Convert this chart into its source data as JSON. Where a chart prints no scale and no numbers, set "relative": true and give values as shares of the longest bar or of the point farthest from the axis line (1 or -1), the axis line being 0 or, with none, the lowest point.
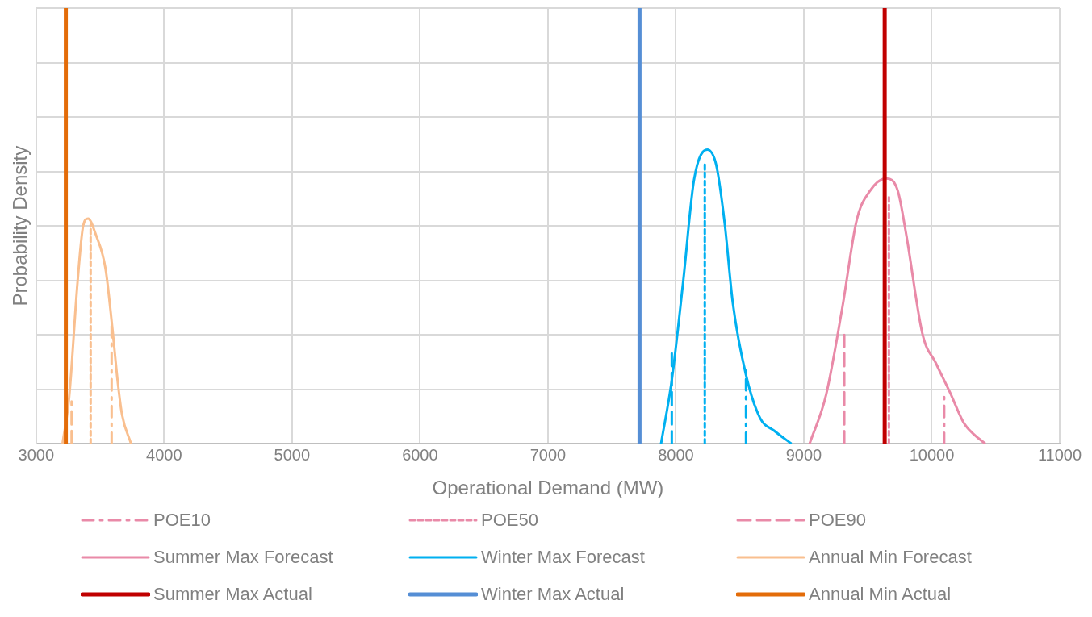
{
  "chart_data": {
    "type": "line",
    "xlabel": "Operational Demand (MW)",
    "ylabel": "Probability Density",
    "relative": true,
    "xlim": [
      3000,
      11000
    ],
    "xticks": [
      3000,
      4000,
      5000,
      6000,
      7000,
      8000,
      9000,
      10000,
      11000
    ],
    "grid": true,
    "legend": "bottom",
    "marker": "none",
    "series": [
      {
        "name": "POE10",
        "color": "#e98aa8",
        "line_style": "dashdot",
        "x": [
          10097,
          10097
        ],
        "values": [
          0,
          0.118
        ]
      },
      {
        "name": "POE50",
        "color": "#e98aa8",
        "line_style": "dotted",
        "x": [
          9665,
          9665
        ],
        "values": [
          0,
          0.566
        ]
      },
      {
        "name": "POE90",
        "color": "#e98aa8",
        "line_style": "dashed",
        "x": [
          9316,
          9316
        ],
        "values": [
          0,
          0.25
        ]
      },
      {
        "name": "Summer Max Forecast",
        "color": "#e98aa8",
        "line_style": "solid",
        "x": [
          9045,
          9174,
          9303,
          9413,
          9516,
          9645,
          9735,
          9800,
          9929,
          10032,
          10142,
          10252,
          10335,
          10419
        ],
        "values": [
          0,
          0.112,
          0.316,
          0.513,
          0.58,
          0.609,
          0.58,
          0.481,
          0.25,
          0.185,
          0.118,
          0.047,
          0.02,
          0
        ]
      },
      {
        "name": "Winter Max Forecast",
        "color": "#00b0f0",
        "line_style": "solid",
        "x": [
          7884,
          7968,
          8058,
          8142,
          8245,
          8316,
          8381,
          8445,
          8548,
          8658,
          8768,
          8903
        ],
        "values": [
          0,
          0.146,
          0.375,
          0.606,
          0.675,
          0.639,
          0.507,
          0.323,
          0.158,
          0.059,
          0.03,
          0
        ]
      },
      {
        "name": "Annual Min Forecast",
        "color": "#f9bf8f",
        "line_style": "solid",
        "x": [
          3206,
          3258,
          3323,
          3368,
          3406,
          3465,
          3542,
          3594,
          3639,
          3671,
          3742
        ],
        "values": [
          0,
          0.107,
          0.369,
          0.501,
          0.517,
          0.481,
          0.402,
          0.27,
          0.138,
          0.067,
          0
        ]
      },
      {
        "name": "Summer Max Actual",
        "color": "#c00000",
        "line_style": "solid",
        "x": [
          9632,
          9632
        ],
        "values": [
          0,
          1
        ]
      },
      {
        "name": "Winter Max Actual",
        "color": "#558ed5",
        "line_style": "solid",
        "x": [
          7716,
          7716
        ],
        "values": [
          0,
          1
        ]
      },
      {
        "name": "Annual Min Actual",
        "color": "#e36c09",
        "line_style": "solid",
        "x": [
          3232,
          3232
        ],
        "values": [
          0,
          1
        ]
      },
      {
        "color": "#00b0f0",
        "line_style": "dashdot",
        "x": [
          8548,
          8548
        ],
        "values": [
          0,
          0.168
        ]
      },
      {
        "color": "#00b0f0",
        "line_style": "dotted",
        "x": [
          8226,
          8226
        ],
        "values": [
          0,
          0.645
        ]
      },
      {
        "color": "#00b0f0",
        "line_style": "dashed",
        "x": [
          7968,
          7968
        ],
        "values": [
          0,
          0.221
        ]
      },
      {
        "color": "#f9bf8f",
        "line_style": "dashdot",
        "x": [
          3590,
          3590
        ],
        "values": [
          0,
          0.27
        ]
      },
      {
        "color": "#f9bf8f",
        "line_style": "dotted",
        "x": [
          3426,
          3426
        ],
        "values": [
          0,
          0.503
        ]
      },
      {
        "color": "#f9bf8f",
        "line_style": "dashed",
        "x": [
          3277,
          3277
        ],
        "values": [
          0,
          0.097
        ]
      }
    ]
  }
}
